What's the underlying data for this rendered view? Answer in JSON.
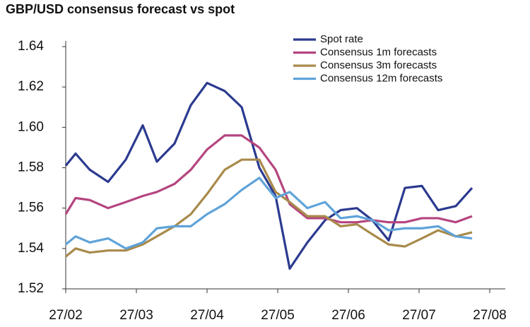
{
  "chart_data": {
    "type": "line",
    "title": "GBP/USD consensus forecast vs spot",
    "x": [
      0,
      0.14,
      0.34,
      0.6,
      0.85,
      1.09,
      1.29,
      1.54,
      1.77,
      2.0,
      2.25,
      2.49,
      2.74,
      2.97,
      3.17,
      3.42,
      3.67,
      3.89,
      4.12,
      4.34,
      4.57,
      4.8,
      5.04,
      5.27,
      5.52,
      5.75
    ],
    "series": [
      {
        "name": "Spot rate",
        "color": "#2b3a8f",
        "values": [
          1.581,
          1.587,
          1.579,
          1.573,
          1.584,
          1.601,
          1.583,
          1.592,
          1.611,
          1.622,
          1.618,
          1.61,
          1.58,
          1.566,
          1.53,
          1.543,
          1.554,
          1.559,
          1.56,
          1.554,
          1.544,
          1.57,
          1.571,
          1.559,
          1.561,
          1.57
        ]
      },
      {
        "name": "Consensus 1m forecasts",
        "color": "#b5457f",
        "values": [
          1.557,
          1.565,
          1.564,
          1.56,
          1.563,
          1.566,
          1.568,
          1.572,
          1.579,
          1.589,
          1.596,
          1.596,
          1.59,
          1.579,
          1.562,
          1.555,
          1.555,
          1.553,
          1.553,
          1.554,
          1.553,
          1.553,
          1.555,
          1.555,
          1.553,
          1.556
        ]
      },
      {
        "name": "Consensus 3m forecasts",
        "color": "#a88a4a",
        "values": [
          1.536,
          1.54,
          1.538,
          1.539,
          1.539,
          1.542,
          1.546,
          1.551,
          1.557,
          1.567,
          1.579,
          1.584,
          1.584,
          1.568,
          1.563,
          1.556,
          1.556,
          1.551,
          1.552,
          1.547,
          1.542,
          1.541,
          1.545,
          1.549,
          1.546,
          1.548
        ]
      },
      {
        "name": "Consensus 12m forecasts",
        "color": "#5fa3d9",
        "values": [
          1.542,
          1.546,
          1.543,
          1.545,
          1.54,
          1.543,
          1.55,
          1.551,
          1.551,
          1.557,
          1.562,
          1.569,
          1.575,
          1.565,
          1.568,
          1.56,
          1.563,
          1.555,
          1.556,
          1.554,
          1.549,
          1.55,
          1.55,
          1.551,
          1.546,
          1.545
        ]
      }
    ],
    "xlim": [
      0,
      6
    ],
    "xticks": [
      {
        "value": 0,
        "label": "27/02"
      },
      {
        "value": 1,
        "label": "27/03"
      },
      {
        "value": 2,
        "label": "27/04"
      },
      {
        "value": 3,
        "label": "27/05"
      },
      {
        "value": 4,
        "label": "27/06"
      },
      {
        "value": 5,
        "label": "27/07"
      },
      {
        "value": 6,
        "label": "27/08"
      }
    ],
    "ylim": [
      1.52,
      1.64
    ],
    "yticks": [
      {
        "value": 1.52,
        "label": "1.52"
      },
      {
        "value": 1.54,
        "label": "1.54"
      },
      {
        "value": 1.56,
        "label": "1.56"
      },
      {
        "value": 1.58,
        "label": "1.58"
      },
      {
        "value": 1.6,
        "label": "1.60"
      },
      {
        "value": 1.62,
        "label": "1.62"
      },
      {
        "value": 1.64,
        "label": "1.64"
      }
    ],
    "grid": false,
    "legend": "top-right"
  }
}
